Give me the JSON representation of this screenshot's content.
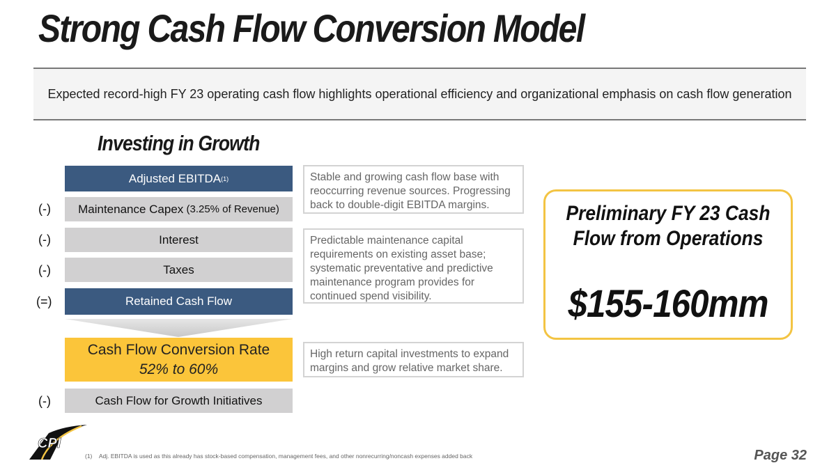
{
  "title": "Strong Cash Flow Conversion Model",
  "banner": "Expected record-high FY 23 operating cash flow highlights operational efficiency and organizational emphasis on cash flow generation",
  "section_title": "Investing in Growth",
  "waterfall": {
    "ebitda": "Adjusted EBITDA",
    "ebitda_sup": "(1)",
    "capex_op": "(-)",
    "capex_main": "Maintenance Capex",
    "capex_detail": " (3.25% of Revenue)",
    "interest_op": "(-)",
    "interest": "Interest",
    "taxes_op": "(-)",
    "taxes": "Taxes",
    "retained_op": "(=)",
    "retained": "Retained Cash Flow",
    "conversion_label": "Cash Flow Conversion Rate",
    "conversion_value": "52% to 60%",
    "growth_op": "(-)",
    "growth": "Cash Flow for Growth Initiatives"
  },
  "notes": [
    "Stable and growing cash flow base with reoccurring revenue sources. Progressing back to double-digit EBITDA margins.",
    "Predictable maintenance capital requirements on existing asset base; systematic preventative and predictive maintenance program provides for continued spend visibility.",
    "High return capital investments to expand margins and grow relative market share."
  ],
  "preliminary": {
    "heading": "Preliminary FY 23 Cash Flow from Operations",
    "value": "$155-160mm"
  },
  "footnote": {
    "num": "(1)",
    "text": "Adj. EBITDA is used as this already has stock-based compensation, management fees, and other nonrecurring/noncash expenses added back"
  },
  "logo": "CPI",
  "page": "Page 32",
  "colors": {
    "blue": "#3b5a80",
    "yellow": "#fbc53a",
    "gray": "#d1d0d1"
  }
}
